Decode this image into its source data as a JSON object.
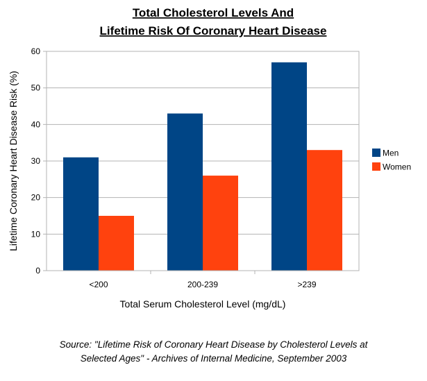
{
  "chart_data": {
    "type": "bar",
    "title": [
      "Total Cholesterol Levels And",
      "Lifetime Risk Of Coronary Heart Disease"
    ],
    "categories": [
      "<200",
      "200-239",
      ">239"
    ],
    "series": [
      {
        "name": "Men",
        "values": [
          31,
          43,
          57
        ],
        "color": "#004586"
      },
      {
        "name": "Women",
        "values": [
          15,
          26,
          33
        ],
        "color": "#ff420e"
      }
    ],
    "xlabel": "Total Serum Cholesterol Level (mg/dL)",
    "ylabel": "Lifetime Coronary Heart Disease Risk (%)",
    "ylim": [
      0,
      60
    ],
    "yticks": [
      0,
      10,
      20,
      30,
      40,
      50,
      60
    ],
    "grid": true,
    "legend": "right"
  },
  "source": {
    "line1": "Source: \"Lifetime Risk of Coronary Heart Disease by Cholesterol Levels at",
    "line2": "Selected Ages\" - Archives of Internal Medicine, September 2003"
  }
}
